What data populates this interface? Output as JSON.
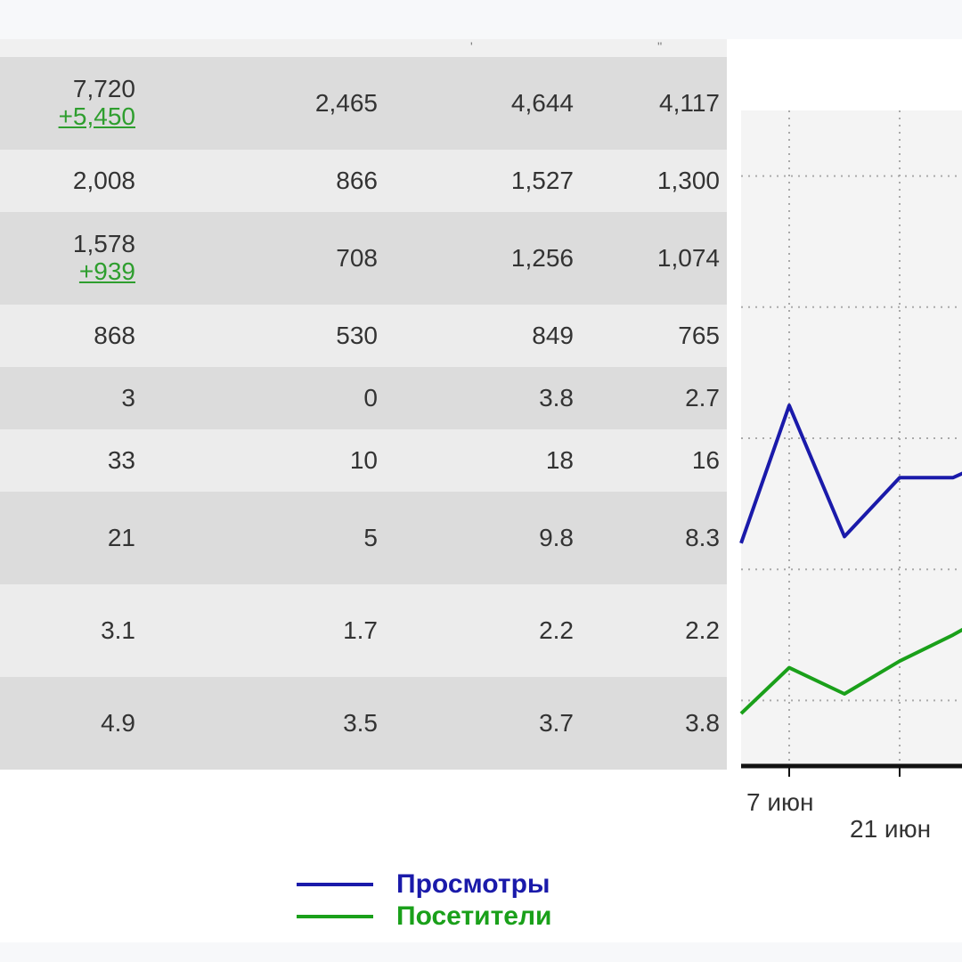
{
  "colors": {
    "views": "#1a1aaa",
    "visitors": "#1aa01a",
    "delta": "#2e9e2e",
    "text": "#333333",
    "row_dark": "#dcdcdc",
    "row_light": "#ececec",
    "plot_bg": "#f4f4f4"
  },
  "table": {
    "rows": [
      {
        "c1": "7,720",
        "c1_delta": "+5,450",
        "c2": "2,465",
        "c3": "4,644",
        "c4": "4,117"
      },
      {
        "c1": "2,008",
        "c2": "866",
        "c3": "1,527",
        "c4": "1,300"
      },
      {
        "c1": "1,578",
        "c1_delta": "+939",
        "c2": "708",
        "c3": "1,256",
        "c4": "1,074"
      },
      {
        "c1": "868",
        "c2": "530",
        "c3": "849",
        "c4": "765"
      },
      {
        "c1": "3",
        "c2": "0",
        "c3": "3.8",
        "c4": "2.7"
      },
      {
        "c1": "33",
        "c2": "10",
        "c3": "18",
        "c4": "16"
      },
      {
        "c1": "21",
        "c2": "5",
        "c3": "9.8",
        "c4": "8.3"
      },
      {
        "c1": "3.1",
        "c2": "1.7",
        "c3": "2.2",
        "c4": "2.2"
      },
      {
        "c1": "4.9",
        "c2": "3.5",
        "c3": "3.7",
        "c4": "3.8"
      }
    ]
  },
  "chart_data": {
    "type": "line",
    "grid": true,
    "x_tick_labels": [
      "7 июн",
      "21 июн"
    ],
    "series": [
      {
        "name": "Просмотры",
        "color": "#1a1aaa",
        "values": [
          1.7,
          2.75,
          1.75,
          2.2,
          2.2,
          2.4
        ]
      },
      {
        "name": "Посетители",
        "color": "#1aa01a",
        "values": [
          0.4,
          0.75,
          0.55,
          0.8,
          1.0,
          1.25
        ]
      }
    ]
  },
  "legend": {
    "items": [
      {
        "label": "Просмотры",
        "color": "#1a1aaa"
      },
      {
        "label": "Посетители",
        "color": "#1aa01a"
      }
    ]
  }
}
